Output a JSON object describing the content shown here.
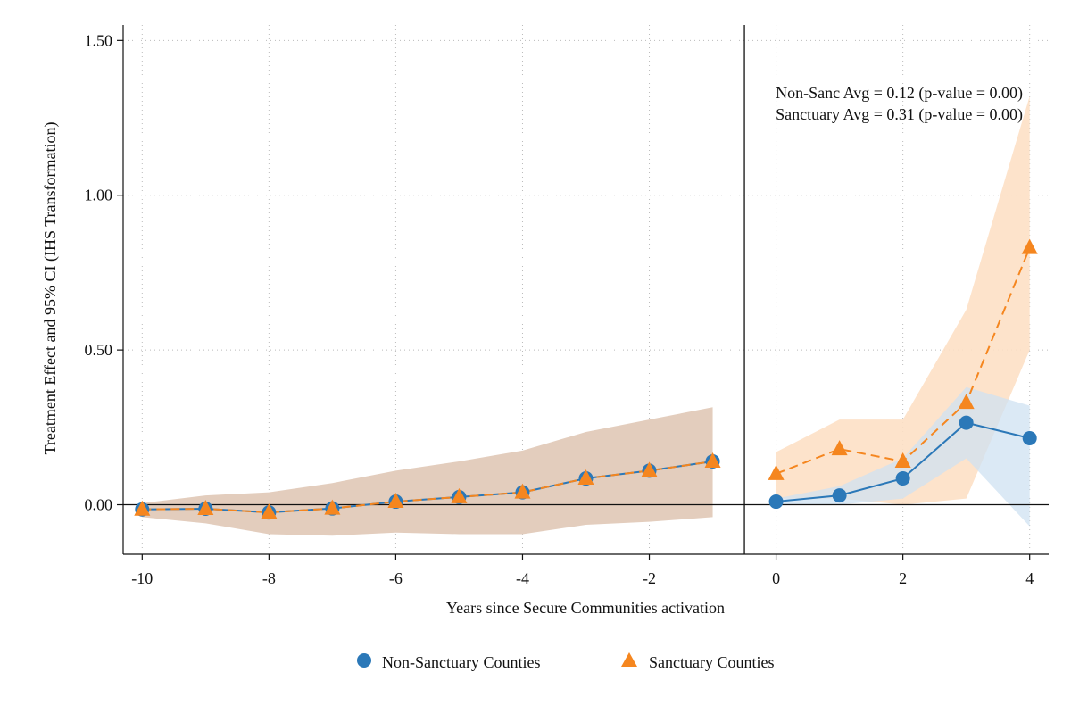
{
  "chart_data": {
    "type": "line",
    "title": "",
    "xlabel": "Years since Secure Communities activation",
    "ylabel": "Treatment Effect and 95% CI (IHS Transformation)",
    "xlim": [
      -10.3,
      4.3
    ],
    "ylim": [
      -0.16,
      1.55
    ],
    "xticks": [
      -10,
      -8,
      -6,
      -4,
      -2,
      0,
      2,
      4
    ],
    "xtick_labels": [
      "-10",
      "-8",
      "-6",
      "-4",
      "-2",
      "0",
      "2",
      "4"
    ],
    "yticks": [
      0,
      0.5,
      1,
      1.5
    ],
    "ytick_labels": [
      "0.00",
      "0.50",
      "1.00",
      "1.50"
    ],
    "grid": true,
    "reference_lines": {
      "vertical_x": -0.5,
      "horizontal_y": 0
    },
    "annotations": [
      "Non-Sanc Avg = 0.12 (p-value = 0.00)",
      "Sanctuary Avg = 0.31 (p-value = 0.00)"
    ],
    "legend_position": "bottom",
    "pre_period": {
      "x": [
        -10,
        -9,
        -8,
        -7,
        -6,
        -5,
        -4,
        -3,
        -2,
        -1
      ],
      "non_sanctuary": [
        -0.015,
        -0.013,
        -0.025,
        -0.012,
        0.01,
        0.025,
        0.04,
        0.085,
        0.11,
        0.14
      ],
      "sanctuary": [
        -0.015,
        -0.013,
        -0.025,
        -0.012,
        0.01,
        0.025,
        0.04,
        0.085,
        0.11,
        0.14
      ],
      "ci_low": [
        -0.04,
        -0.06,
        -0.095,
        -0.1,
        -0.09,
        -0.095,
        -0.095,
        -0.065,
        -0.055,
        -0.04
      ],
      "ci_high": [
        0.005,
        0.03,
        0.04,
        0.07,
        0.11,
        0.14,
        0.175,
        0.235,
        0.275,
        0.315
      ]
    },
    "post_period": {
      "x": [
        0,
        1,
        2,
        3,
        4
      ],
      "non_sanctuary": {
        "values": [
          0.01,
          0.03,
          0.085,
          0.265,
          0.215
        ],
        "ci_low": [
          0.0,
          0.0,
          0.02,
          0.15,
          -0.07
        ],
        "ci_high": [
          0.02,
          0.06,
          0.15,
          0.38,
          0.32
        ]
      },
      "sanctuary": {
        "values": [
          0.1,
          0.18,
          0.14,
          0.33,
          0.83
        ],
        "ci_low": [
          0.02,
          0.02,
          0.0,
          0.02,
          0.5
        ],
        "ci_high": [
          0.17,
          0.275,
          0.275,
          0.63,
          1.32
        ]
      }
    },
    "series": [
      {
        "name": "Non-Sanctuary Counties",
        "marker": "circle",
        "line": "solid",
        "color": "#2b78b8",
        "ci_color": "#cfe2f1"
      },
      {
        "name": "Sanctuary Counties",
        "marker": "triangle",
        "line": "dashed",
        "color": "#f5861f",
        "ci_color": "#fde0c5"
      }
    ],
    "pre_ci_color": "#e3cdbd"
  }
}
